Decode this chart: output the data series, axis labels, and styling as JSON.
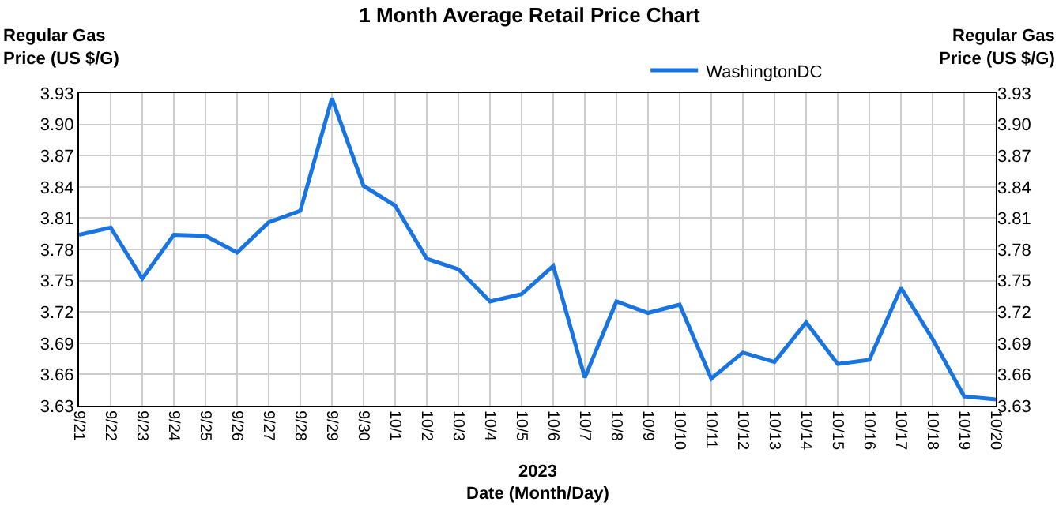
{
  "chart_data": {
    "type": "line",
    "title": "1 Month Average Retail Price Chart",
    "xlabel": "Date (Month/Day)",
    "ylabel": "Regular Gas\nPrice (US $/G)",
    "y2label": "Regular Gas\nPrice (US $/G)",
    "annotations": [
      "2023"
    ],
    "categories": [
      "9/21",
      "9/22",
      "9/23",
      "9/24",
      "9/25",
      "9/26",
      "9/27",
      "9/28",
      "9/29",
      "9/30",
      "10/1",
      "10/2",
      "10/3",
      "10/4",
      "10/5",
      "10/6",
      "10/7",
      "10/8",
      "10/9",
      "10/10",
      "10/11",
      "10/12",
      "10/13",
      "10/14",
      "10/15",
      "10/16",
      "10/17",
      "10/18",
      "10/19",
      "10/20"
    ],
    "series": [
      {
        "name": "WashingtonDC",
        "color": "#1874e0",
        "values": [
          3.794,
          3.801,
          3.752,
          3.794,
          3.793,
          3.777,
          3.806,
          3.817,
          3.925,
          3.841,
          3.822,
          3.771,
          3.761,
          3.73,
          3.737,
          3.764,
          3.657,
          3.73,
          3.719,
          3.727,
          3.656,
          3.681,
          3.672,
          3.71,
          3.67,
          3.674,
          3.743,
          3.694,
          3.639,
          3.636
        ]
      }
    ],
    "ylim": [
      3.63,
      3.93
    ],
    "yticks": [
      3.63,
      3.66,
      3.69,
      3.72,
      3.75,
      3.78,
      3.81,
      3.84,
      3.87,
      {
        "value": 3.9,
        "label": "3.90"
      },
      3.93
    ],
    "y2lim": [
      3.63,
      3.93
    ],
    "y2ticks": [
      3.63,
      3.66,
      3.69,
      3.72,
      3.75,
      3.78,
      3.81,
      3.84,
      3.87,
      {
        "value": 3.9,
        "label": "3.90"
      },
      3.93
    ],
    "grid": true,
    "legend": "top right",
    "marker": "none",
    "line_style": "solid"
  }
}
